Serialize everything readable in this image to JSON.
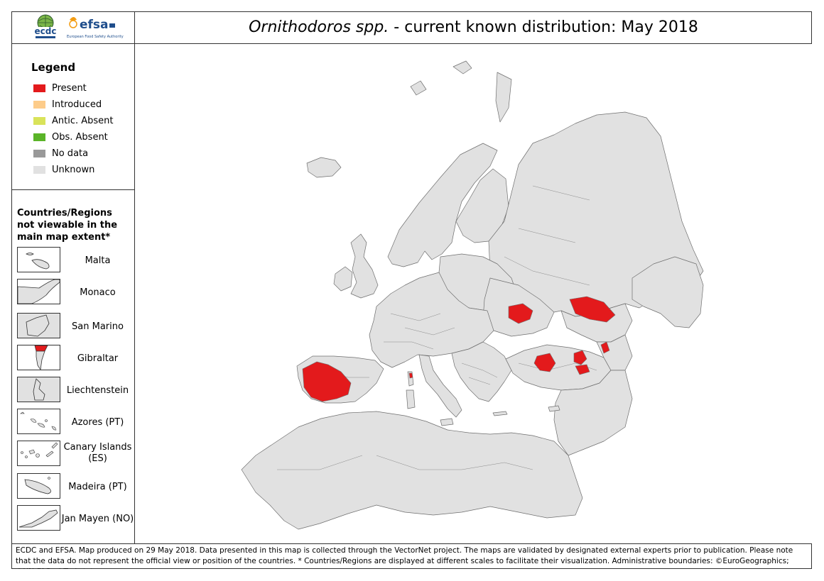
{
  "header": {
    "title_italic": "Ornithodoros spp.",
    "title_rest": " - current known distribution: May 2018",
    "logos": [
      {
        "name": "ecdc-logo",
        "text": "ecdc"
      },
      {
        "name": "efsa-logo",
        "text": "efsa",
        "subtext": "European Food Safety Authority"
      }
    ]
  },
  "legend": {
    "heading": "Legend",
    "items": [
      {
        "label": "Present",
        "color": "#e31a1c"
      },
      {
        "label": "Introduced",
        "color": "#fdcc8a"
      },
      {
        "label": "Antic. Absent",
        "color": "#d9e35a"
      },
      {
        "label": "Obs. Absent",
        "color": "#5ab428"
      },
      {
        "label": "No data",
        "color": "#999999"
      },
      {
        "label": "Unknown",
        "color": "#e1e1e1"
      }
    ]
  },
  "insets": {
    "heading": "Countries/Regions not viewable in the main map extent*",
    "items": [
      {
        "label": "Malta",
        "icon": "malta-shape-icon"
      },
      {
        "label": "Monaco",
        "icon": "monaco-shape-icon"
      },
      {
        "label": "San Marino",
        "icon": "san-marino-shape-icon"
      },
      {
        "label": "Gibraltar",
        "icon": "gibraltar-shape-icon"
      },
      {
        "label": "Liechtenstein",
        "icon": "liechtenstein-shape-icon"
      },
      {
        "label": "Azores (PT)",
        "icon": "azores-shape-icon"
      },
      {
        "label": "Canary Islands (ES)",
        "icon": "canary-islands-shape-icon"
      },
      {
        "label": "Madeira (PT)",
        "icon": "madeira-shape-icon"
      },
      {
        "label": "Jan Mayen (NO)",
        "icon": "jan-mayen-shape-icon"
      }
    ]
  },
  "map": {
    "land_color": "#e1e1e1",
    "present_color": "#e31a1c",
    "border_color": "#6e6e6e",
    "present_regions": [
      "Portugal / south-west Spain",
      "Corsica",
      "Southern Ukraine / Moldova",
      "South-western Russia / Kazakhstan border",
      "North-eastern Turkey / Georgia",
      "Central Turkey",
      "Eastern Turkey"
    ]
  },
  "footer": {
    "text": "ECDC and EFSA. Map produced on 29 May 2018. Data presented in this map is collected through the VectorNet project. The maps are validated by designated external experts prior to publication. Please note that the data do not represent the official view or position of the countries. * Countries/Regions are displayed at different scales to facilitate their visualization. Administrative boundaries: ©EuroGeographics; ©UN-FAO; ©Turkstat."
  }
}
